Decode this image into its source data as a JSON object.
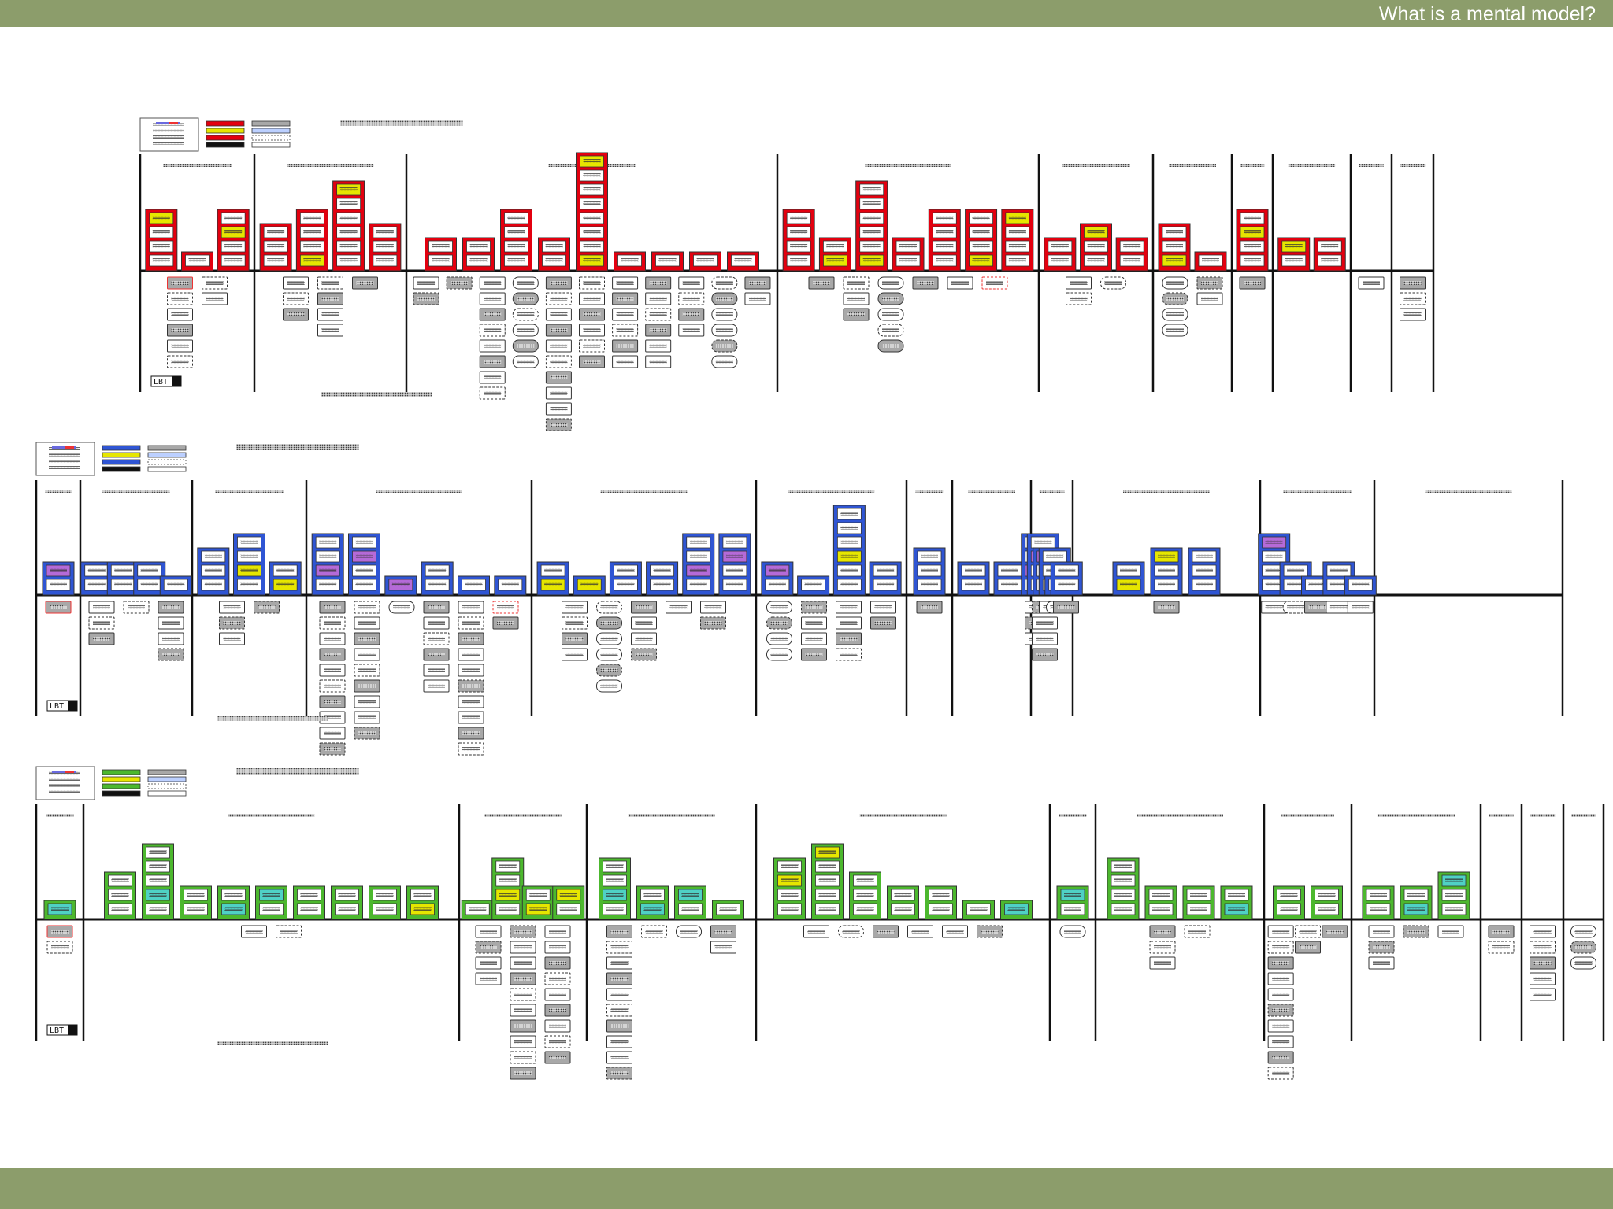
{
  "slide": {
    "title": "What is a mental model?"
  },
  "header_label": "LBT",
  "colors": {
    "header_bar": "#8c9d6b",
    "footer_bar": "#8c9d6b",
    "model_1_accent": "#e3000f",
    "model_2_accent": "#2f55d4",
    "model_3_accent": "#4cb82e",
    "highlight_yellow": "#e6e600",
    "highlight_cyan": "#4fd1c5",
    "highlight_purple": "#b56ad8",
    "support_gray": "#a8a8a8",
    "support_outline_red": "#ee3333"
  },
  "mental_models": [
    {
      "name": "model-1",
      "accent": "model_1_accent",
      "towers": [
        [
          4,
          1,
          4
        ],
        [
          3,
          4,
          6,
          3
        ],
        [
          2,
          2,
          4,
          2,
          8,
          1,
          1,
          1,
          1
        ],
        [
          4,
          2,
          6,
          2,
          4,
          4,
          4
        ],
        [
          2,
          3,
          2
        ],
        [
          3,
          1
        ],
        [
          4
        ],
        [
          2,
          2
        ],
        [],
        []
      ],
      "supports": [
        [
          6,
          2
        ],
        [
          3,
          4,
          1
        ],
        [
          2,
          1,
          8,
          6,
          10,
          6,
          6,
          6,
          4,
          6,
          2
        ],
        [
          1,
          3,
          5,
          1,
          1,
          1
        ],
        [
          2,
          1
        ],
        [
          4,
          2
        ],
        [
          1
        ],
        [],
        [
          1
        ],
        [
          3
        ]
      ]
    },
    {
      "name": "model-2",
      "accent": "model_2_accent",
      "towers": [
        [
          2
        ],
        [
          2,
          2,
          2,
          1
        ],
        [
          3,
          4,
          2
        ],
        [
          4,
          4,
          1,
          2,
          1,
          1
        ],
        [
          2,
          1,
          2,
          2,
          4,
          4
        ],
        [
          2,
          1,
          6,
          2
        ],
        [
          3
        ],
        [
          2,
          2
        ],
        [
          4,
          4,
          3,
          3,
          1,
          2
        ],
        [
          2,
          3,
          3
        ],
        [
          4,
          2,
          1,
          2,
          1
        ]
      ],
      "supports": [
        [
          1
        ],
        [
          3,
          1,
          4
        ],
        [
          3,
          1
        ],
        [
          10,
          9,
          1,
          6,
          10,
          2
        ],
        [
          4,
          6,
          4,
          1,
          2
        ],
        [
          4,
          4,
          4,
          2
        ],
        [
          1
        ],
        [],
        [
          3,
          4,
          1,
          1,
          1
        ],
        [
          1
        ],
        [
          1,
          1,
          1,
          1,
          1
        ]
      ],
      "highlights": [
        "highlight_purple",
        "highlight_yellow"
      ]
    },
    {
      "name": "model-3",
      "accent": "model_3_accent",
      "towers": [
        [
          1
        ],
        [
          3,
          5,
          2,
          2,
          2,
          2,
          2,
          2,
          2
        ],
        [
          1,
          4,
          2,
          2
        ],
        [
          4,
          2,
          2,
          1
        ],
        [
          4,
          5,
          3,
          2,
          2,
          1,
          1
        ],
        [
          2
        ],
        [
          4,
          2,
          2,
          2
        ],
        [
          2,
          2
        ],
        [
          2,
          2,
          3
        ],
        [],
        [],
        []
      ],
      "supports": [
        [
          2
        ],
        [
          1,
          1
        ],
        [
          4,
          10,
          9
        ],
        [
          10,
          1,
          1,
          2
        ],
        [
          1,
          1,
          1,
          1,
          1,
          1
        ],
        [
          1
        ],
        [
          3,
          1
        ],
        [
          10,
          2,
          1
        ],
        [
          3,
          1,
          1
        ],
        [
          2
        ],
        [
          5
        ],
        [
          3
        ]
      ],
      "highlights": [
        "highlight_cyan",
        "highlight_yellow"
      ]
    }
  ]
}
